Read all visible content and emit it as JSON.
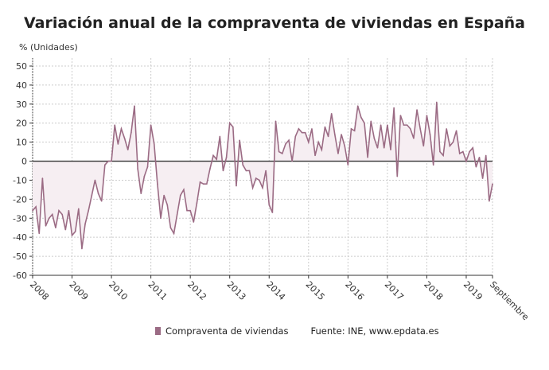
{
  "chart_data": {
    "type": "line",
    "title": "Variación anual de la compraventa de viviendas en España",
    "ylabel": "% (Unidades)",
    "ylim": [
      -60,
      50
    ],
    "yticks": [
      50,
      40,
      30,
      20,
      10,
      0,
      -10,
      -20,
      -30,
      -40,
      -50,
      -60
    ],
    "xticks": [
      "2008",
      "2009",
      "2010",
      "2011",
      "2012",
      "2013",
      "2014",
      "2015",
      "2016",
      "2017",
      "2018",
      "2019",
      "Septiembre"
    ],
    "x_start": "2008-01",
    "x_end": "2019-09",
    "frequency": "monthly",
    "grid": true,
    "legend": "bottom",
    "colors": {
      "line": "#9b6b84",
      "fill": "#f6eef2",
      "zero": "#333333",
      "grid": "#cccccc"
    },
    "series": [
      {
        "name": "Compraventa de viviendas",
        "values": [
          -26,
          -24,
          -38,
          -9,
          -34,
          -30,
          -28,
          -35,
          -26,
          -28,
          -36,
          -26,
          -39,
          -37,
          -25,
          -46,
          -33,
          -26,
          -18,
          -10,
          -17,
          -21,
          -2,
          0,
          0,
          19,
          9,
          17,
          12,
          6,
          15,
          29,
          -4,
          -17,
          -8,
          -3,
          19,
          9,
          -12,
          -30,
          -18,
          -23,
          -35,
          -38,
          -28,
          -18,
          -15,
          -26,
          -26,
          -32,
          -22,
          -11,
          -12,
          -12,
          -4,
          3,
          1,
          13,
          -5,
          2,
          20,
          18,
          -13,
          11,
          -2,
          -5,
          -5,
          -14,
          -9,
          -10,
          -14,
          -5,
          -23,
          -27,
          21,
          5,
          4,
          9,
          11,
          0,
          13,
          17,
          15,
          15,
          10,
          17,
          3,
          10,
          6,
          18,
          13,
          25,
          14,
          4,
          14,
          8,
          -2,
          17,
          16,
          29,
          23,
          20,
          2,
          21,
          12,
          7,
          19,
          7,
          19,
          6,
          28,
          -8,
          24,
          19,
          19,
          17,
          12,
          27,
          17,
          8,
          24,
          14,
          -2,
          31,
          5,
          3,
          17,
          8,
          10,
          16,
          4,
          5,
          0,
          5,
          7,
          -3,
          2,
          -9,
          3,
          -21,
          -12
        ]
      }
    ],
    "source": "Fuente: INE, www.epdata.es"
  }
}
